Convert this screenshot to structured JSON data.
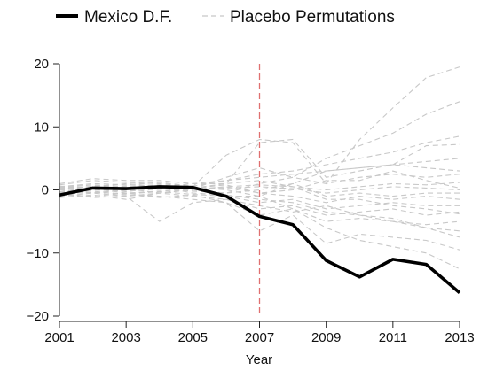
{
  "chart_data": {
    "type": "line",
    "title": "",
    "xlabel": "Year",
    "ylabel": "",
    "xlim": [
      2001,
      2013
    ],
    "ylim": [
      -20,
      20
    ],
    "x_ticks": [
      "2001",
      "2003",
      "2005",
      "2007",
      "2009",
      "2011",
      "2013"
    ],
    "y_ticks": [
      "20",
      "10",
      "0",
      "−10",
      "−20"
    ],
    "legend_placement": "top",
    "grid": false,
    "reference_line": {
      "x": 2007,
      "color": "#e07070",
      "style": "dashed"
    },
    "x": [
      2001,
      2002,
      2003,
      2004,
      2005,
      2006,
      2007,
      2008,
      2009,
      2010,
      2011,
      2012,
      2013
    ],
    "series": [
      {
        "name": "Mexico D.F.",
        "color": "#000000",
        "style": "solid",
        "values": [
          -0.8,
          0.3,
          0.2,
          0.5,
          0.4,
          -1.0,
          -4.2,
          -5.5,
          -11.2,
          -13.8,
          -11.0,
          -11.8,
          -16.3
        ]
      }
    ],
    "placebo": {
      "name": "Placebo Permutations",
      "color": "#c8c8c8",
      "style": "dashed",
      "series": [
        [
          0.3,
          0.5,
          0.4,
          0.6,
          0.5,
          5.5,
          8.0,
          7.5,
          1.0,
          8.0,
          13.0,
          17.8,
          19.5
        ],
        [
          0.2,
          0.3,
          0.2,
          0.3,
          0.2,
          2.0,
          3.5,
          2.0,
          5.0,
          7.0,
          9.0,
          12.0,
          14.0
        ],
        [
          0.5,
          1.0,
          0.8,
          1.2,
          0.6,
          1.5,
          2.5,
          3.0,
          4.0,
          5.0,
          6.0,
          7.5,
          8.5
        ],
        [
          -0.5,
          0.0,
          -0.2,
          0.1,
          0.3,
          1.0,
          7.5,
          8.0,
          2.0,
          3.0,
          4.0,
          7.0,
          7.2
        ],
        [
          0.8,
          1.5,
          1.2,
          1.0,
          0.5,
          0.0,
          -1.0,
          1.0,
          3.0,
          3.5,
          4.0,
          4.5,
          5.0
        ],
        [
          -1.0,
          -0.5,
          0.0,
          0.5,
          1.0,
          1.5,
          2.0,
          2.5,
          3.0,
          3.5,
          4.0,
          3.5,
          3.0
        ],
        [
          0.0,
          0.5,
          1.0,
          0.5,
          0.0,
          -0.5,
          1.0,
          2.0,
          1.0,
          2.0,
          2.5,
          2.0,
          2.5
        ],
        [
          0.4,
          0.8,
          0.5,
          0.3,
          0.1,
          0.5,
          0.8,
          0.5,
          0.0,
          0.5,
          1.0,
          0.8,
          1.2
        ],
        [
          -0.3,
          0.2,
          -0.5,
          -0.2,
          0.1,
          0.3,
          0.5,
          0.2,
          -0.5,
          0.0,
          0.5,
          0.3,
          0.0
        ],
        [
          0.5,
          -0.5,
          0.0,
          0.2,
          -0.2,
          -0.5,
          0.0,
          1.0,
          -1.0,
          -0.5,
          -1.0,
          -0.5,
          -0.5
        ],
        [
          -0.5,
          0.5,
          0.2,
          -0.5,
          0.0,
          0.5,
          -0.5,
          -1.0,
          -2.0,
          -1.0,
          -1.5,
          -1.0,
          -1.5
        ],
        [
          0.0,
          -0.5,
          -1.0,
          -0.5,
          0.2,
          -1.0,
          -2.0,
          -1.5,
          -3.0,
          -2.5,
          -2.0,
          -2.5,
          -2.5
        ],
        [
          -1.2,
          -0.8,
          -1.5,
          -0.5,
          -1.0,
          -1.5,
          -3.0,
          -2.5,
          -4.0,
          -3.5,
          -3.0,
          -4.0,
          -3.5
        ],
        [
          -0.8,
          -1.0,
          -0.5,
          -1.2,
          -0.8,
          -2.0,
          -4.0,
          -3.0,
          -5.0,
          -4.5,
          -5.0,
          -5.5,
          -5.0
        ],
        [
          0.6,
          0.3,
          -0.3,
          0.5,
          -0.5,
          -0.8,
          -1.5,
          -2.0,
          -3.5,
          -4.0,
          -5.0,
          -6.0,
          -6.5
        ],
        [
          -0.4,
          -1.2,
          -1.0,
          -5.0,
          -2.0,
          -1.5,
          -2.5,
          -3.5,
          -2.5,
          -4.0,
          -4.5,
          -6.0,
          -7.5
        ],
        [
          0.2,
          -0.2,
          -0.8,
          -1.0,
          -1.5,
          -2.0,
          -6.5,
          -4.0,
          -8.5,
          -7.0,
          -7.5,
          -8.0,
          -9.5
        ],
        [
          -0.6,
          -0.4,
          -0.6,
          -0.3,
          -0.7,
          -1.0,
          -1.0,
          -3.0,
          -6.0,
          -8.0,
          -9.0,
          -10.0,
          -12.5
        ],
        [
          1.0,
          1.8,
          1.5,
          1.5,
          1.0,
          1.0,
          1.5,
          0.5,
          -1.5,
          -1.5,
          -2.5,
          -3.0,
          -3.8
        ],
        [
          0.0,
          0.6,
          0.6,
          0.8,
          0.3,
          0.8,
          -0.5,
          0.0,
          1.5,
          1.5,
          3.0,
          1.5,
          0.3
        ]
      ]
    }
  }
}
